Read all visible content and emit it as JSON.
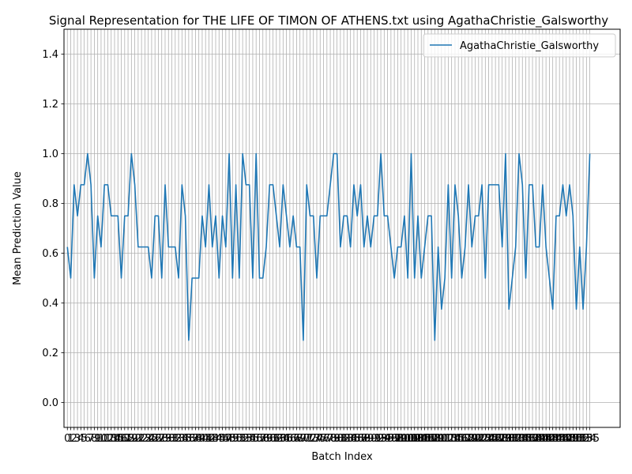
{
  "chart_data": {
    "type": "line",
    "title": "Signal Representation for THE LIFE OF TIMON OF ATHENS.txt using AgathaChristie_Galsworthy",
    "xlabel": "Batch Index",
    "ylabel": "Mean Prediction Value",
    "ylim": [
      -0.1,
      1.5
    ],
    "xlim": [
      -1,
      164
    ],
    "yticks": [
      0.0,
      0.2,
      0.4,
      0.6,
      0.8,
      1.0,
      1.2,
      1.4
    ],
    "ytick_labels": [
      "0.0",
      "0.2",
      "0.4",
      "0.6",
      "0.8",
      "1.0",
      "1.2",
      "1.4"
    ],
    "grid": true,
    "legend": "upper-right",
    "series": [
      {
        "name": "AgathaChristie_Galsworthy",
        "color": "#1f77b4",
        "values": [
          0.625,
          0.5,
          0.875,
          0.75,
          0.875,
          0.875,
          1.0,
          0.875,
          0.5,
          0.75,
          0.625,
          0.875,
          0.875,
          0.75,
          0.75,
          0.75,
          0.5,
          0.75,
          0.75,
          1.0,
          0.875,
          0.625,
          0.625,
          0.625,
          0.625,
          0.5,
          0.75,
          0.75,
          0.5,
          0.875,
          0.625,
          0.625,
          0.625,
          0.5,
          0.875,
          0.75,
          0.25,
          0.5,
          0.5,
          0.5,
          0.75,
          0.625,
          0.875,
          0.625,
          0.75,
          0.5,
          0.75,
          0.625,
          1.0,
          0.5,
          0.875,
          0.5,
          1.0,
          0.875,
          0.875,
          0.5,
          1.0,
          0.5,
          0.5,
          0.625,
          0.875,
          0.875,
          0.75,
          0.625,
          0.875,
          0.75,
          0.625,
          0.75,
          0.625,
          0.625,
          0.25,
          0.875,
          0.75,
          0.75,
          0.5,
          0.75,
          0.75,
          0.75,
          0.875,
          1.0,
          1.0,
          0.625,
          0.75,
          0.75,
          0.625,
          0.875,
          0.75,
          0.875,
          0.625,
          0.75,
          0.625,
          0.75,
          0.75,
          1.0,
          0.75,
          0.75,
          0.625,
          0.5,
          0.625,
          0.625,
          0.75,
          0.5,
          1.0,
          0.5,
          0.75,
          0.5,
          0.625,
          0.75,
          0.75,
          0.25,
          0.625,
          0.375,
          0.5,
          0.875,
          0.5,
          0.875,
          0.75,
          0.5,
          0.625,
          0.875,
          0.625,
          0.75,
          0.75,
          0.875,
          0.5,
          0.875,
          0.875,
          0.875,
          0.875,
          0.625,
          1.0,
          0.375,
          0.5,
          0.625,
          1.0,
          0.875,
          0.5,
          0.875,
          0.875,
          0.625,
          0.625,
          0.875,
          0.625,
          0.5,
          0.375,
          0.75,
          0.75,
          0.875,
          0.75,
          0.875,
          0.75,
          0.375,
          0.625,
          0.375,
          0.625,
          1.0
        ]
      }
    ]
  }
}
